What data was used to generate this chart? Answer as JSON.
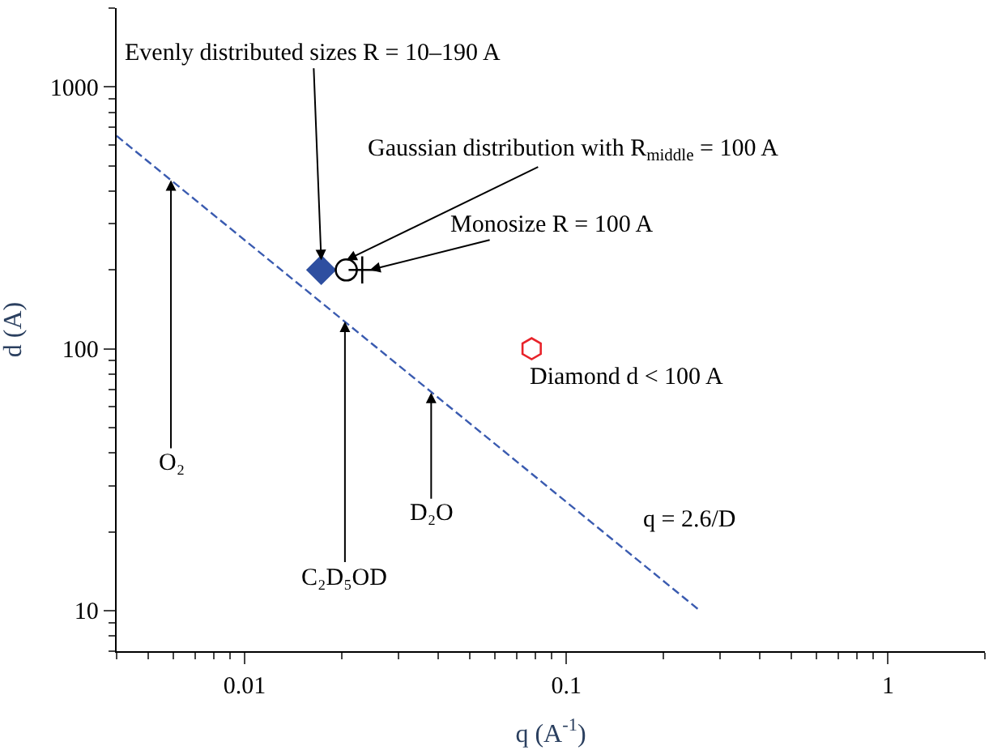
{
  "chart_data": {
    "type": "scatter",
    "xlabel": "q (A$^{-1}$)",
    "ylabel": "d (A)",
    "log": "xy",
    "xlim": [
      0.004,
      2
    ],
    "ylim": [
      7,
      2000
    ],
    "xticks": [
      0.01,
      0.1,
      1
    ],
    "yticks": [
      10,
      100,
      1000
    ],
    "series": [
      {
        "type": "line",
        "x": [
          0.004,
          0.26
        ],
        "values": [
          650,
          10
        ],
        "color": "#3a5bb0",
        "line_style": "dashed",
        "marker": "none"
      },
      {
        "x": [
          0.0173
        ],
        "values": [
          200
        ],
        "color": "#2e4fa0",
        "marker": "diamond"
      },
      {
        "x": [
          0.0207
        ],
        "values": [
          200
        ],
        "color": "#000000",
        "marker": "circle-open"
      },
      {
        "x": [
          0.0232
        ],
        "values": [
          200
        ],
        "color": "#000000",
        "marker": "cross"
      },
      {
        "x": [
          0.078
        ],
        "values": [
          100
        ],
        "color": "#e8232a"
      }
    ],
    "annotations": [
      {
        "text": "Evenly distributed sizes R = 10–190 A",
        "x": 0.0173,
        "y": 218
      },
      {
        "text": "Gaussian distribution with R$_{middle}$ = 100 A",
        "x": 0.0207,
        "y": 218
      },
      {
        "text": "Monosize R = 100 A",
        "x": 0.0245,
        "y": 200
      },
      {
        "text": "Diamond d < 100 A",
        "x": 0.078,
        "y": 100
      },
      {
        "text": "O₂",
        "x": 0.0059,
        "y": 440
      },
      {
        "text": "C₂D₅OD",
        "x": 0.0205,
        "y": 127
      },
      {
        "text": "D₂O",
        "x": 0.038,
        "y": 68
      },
      "q = 2.6/D"
    ]
  }
}
